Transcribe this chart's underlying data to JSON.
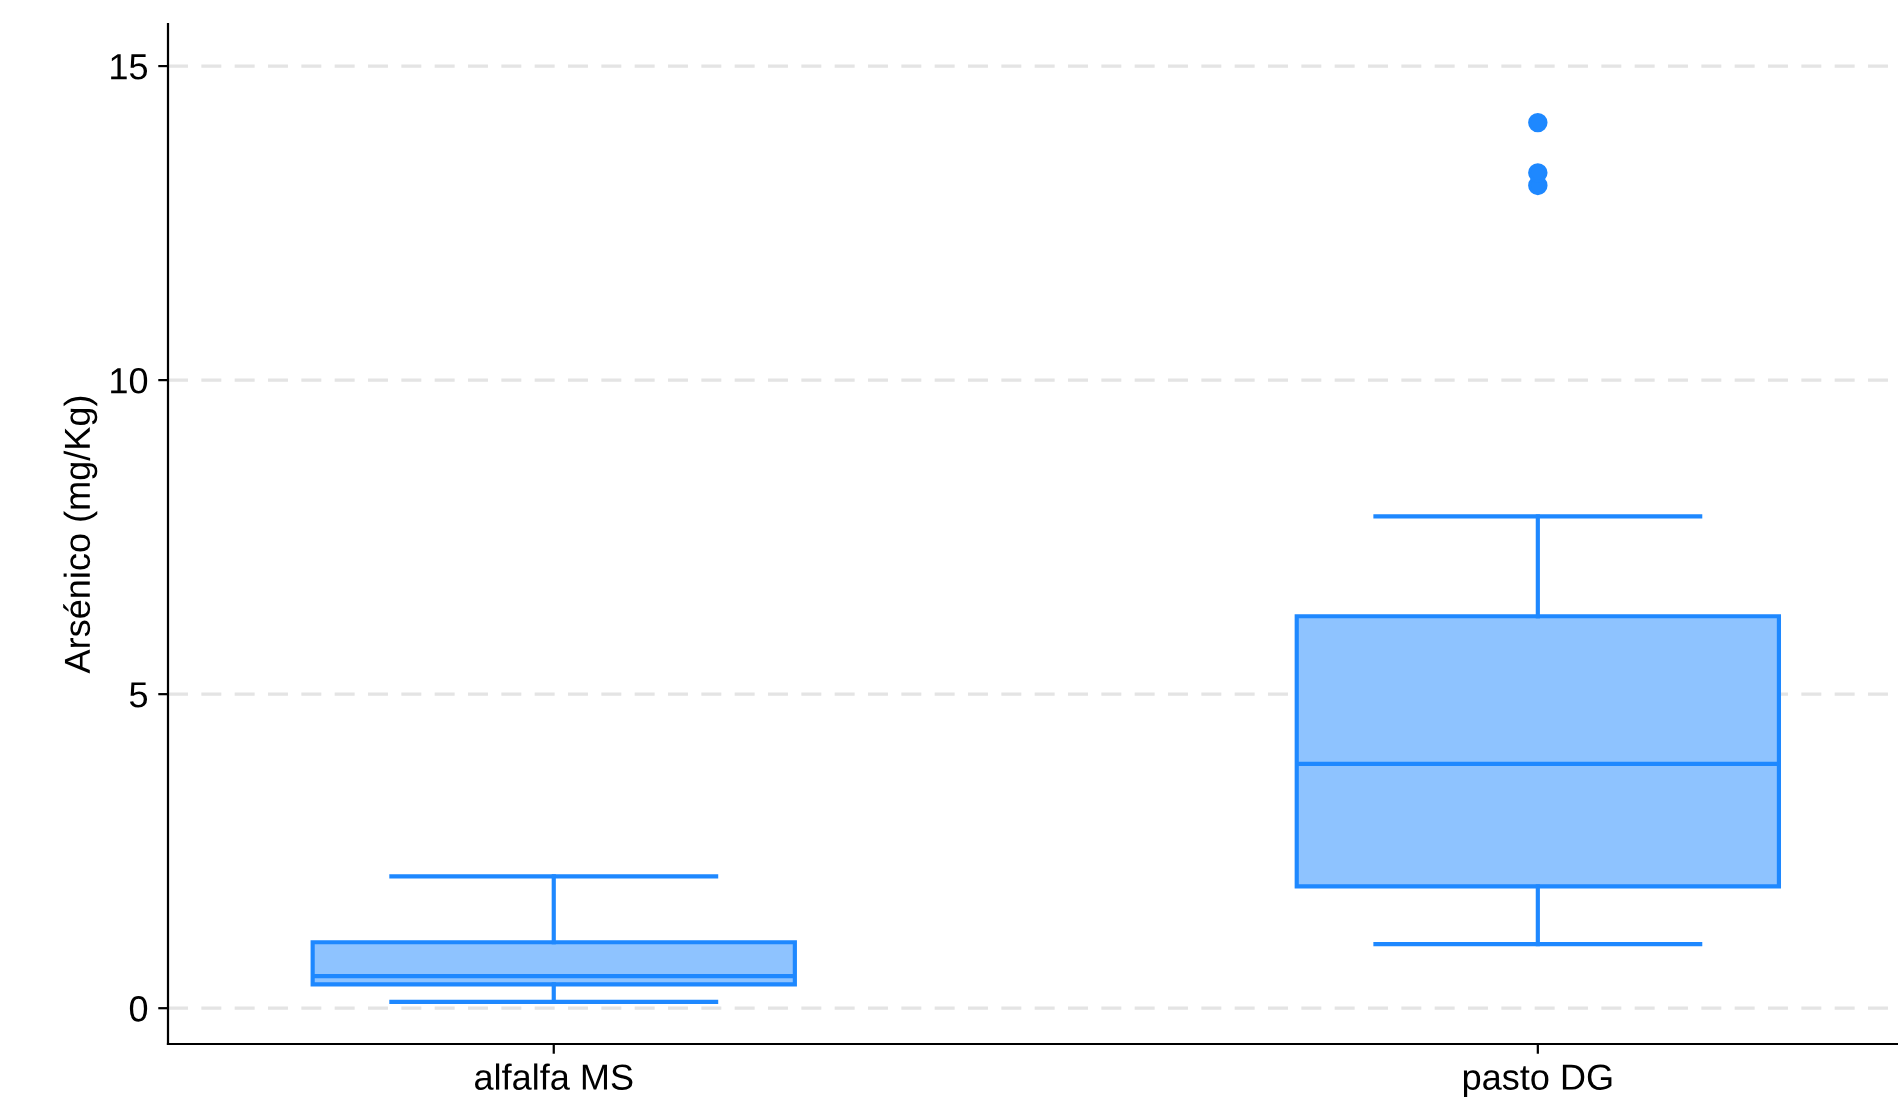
{
  "chart_data": {
    "type": "box",
    "ylabel": "Arsénico (mg/Kg)",
    "categories": [
      "alfalfa MS",
      "pasto DG"
    ],
    "color": "#1e88ff",
    "boxes": [
      {
        "low": 0.1,
        "q1": 0.38,
        "median": 0.51,
        "q3": 1.05,
        "high": 2.1
      },
      {
        "low": 1.02,
        "q1": 1.94,
        "median": 3.89,
        "q3": 6.24,
        "high": 7.83,
        "outliers": [
          13.1,
          13.3,
          14.1
        ]
      }
    ],
    "ylim": [
      -0.57,
      15.67
    ],
    "yticks": [
      0,
      5,
      10,
      15
    ],
    "grid": "y"
  }
}
